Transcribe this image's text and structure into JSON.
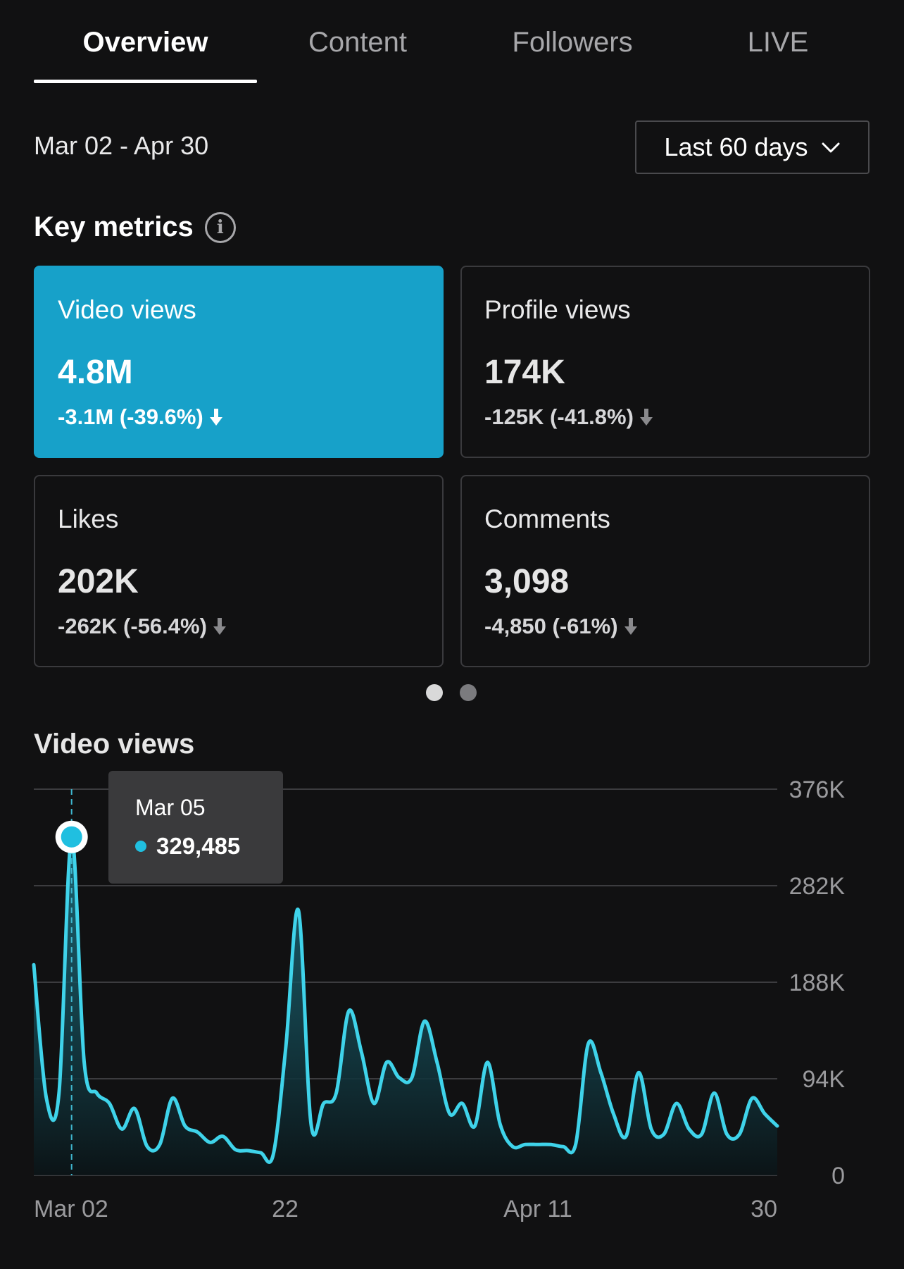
{
  "tabs": [
    {
      "label": "Overview",
      "active": true
    },
    {
      "label": "Content",
      "active": false
    },
    {
      "label": "Followers",
      "active": false
    },
    {
      "label": "LIVE",
      "active": false
    }
  ],
  "date_range": "Mar 02 - Apr 30",
  "range_select": {
    "label": "Last 60 days",
    "icon": "chevron-down-icon"
  },
  "key_metrics": {
    "title": "Key metrics",
    "info_icon": "i",
    "cards": [
      {
        "label": "Video views",
        "value": "4.8M",
        "change": "-3.1M (-39.6%)",
        "active": true
      },
      {
        "label": "Profile views",
        "value": "174K",
        "change": "-125K (-41.8%)",
        "active": false
      },
      {
        "label": "Likes",
        "value": "202K",
        "change": "-262K (-56.4%)",
        "active": false
      },
      {
        "label": "Comments",
        "value": "3,098",
        "change": "-4,850 (-61%)",
        "active": false
      }
    ]
  },
  "pager": {
    "pages": 2,
    "current": 1
  },
  "colors": {
    "accent": "#17a1c9",
    "line": "#3fd3ea",
    "background": "#111112"
  },
  "video_views_chart": {
    "title": "Video views",
    "tooltip": {
      "date": "Mar 05",
      "value": "329,485"
    }
  },
  "chart_data": {
    "type": "area",
    "title": "Video views",
    "x_tick_labels": [
      "Mar 02",
      "22",
      "Apr 11",
      "30"
    ],
    "y_tick_labels": [
      "376K",
      "282K",
      "188K",
      "94K",
      "0"
    ],
    "ylim": [
      0,
      376000
    ],
    "grid": true,
    "x": [
      "Mar 02",
      "Mar 03",
      "Mar 04",
      "Mar 05",
      "Mar 06",
      "Mar 07",
      "Mar 08",
      "Mar 09",
      "Mar 10",
      "Mar 11",
      "Mar 12",
      "Mar 13",
      "Mar 14",
      "Mar 15",
      "Mar 16",
      "Mar 17",
      "Mar 18",
      "Mar 19",
      "Mar 20",
      "Mar 21",
      "Mar 22",
      "Mar 23",
      "Mar 24",
      "Mar 25",
      "Mar 26",
      "Mar 27",
      "Mar 28",
      "Mar 29",
      "Mar 30",
      "Mar 31",
      "Apr 01",
      "Apr 02",
      "Apr 03",
      "Apr 04",
      "Apr 05",
      "Apr 06",
      "Apr 07",
      "Apr 08",
      "Apr 09",
      "Apr 10",
      "Apr 11",
      "Apr 12",
      "Apr 13",
      "Apr 14",
      "Apr 15",
      "Apr 16",
      "Apr 17",
      "Apr 18",
      "Apr 19",
      "Apr 20",
      "Apr 21",
      "Apr 22",
      "Apr 23",
      "Apr 24",
      "Apr 25",
      "Apr 26",
      "Apr 27",
      "Apr 28",
      "Apr 29",
      "Apr 30"
    ],
    "series": [
      {
        "values": [
          205000,
          75000,
          80000,
          329485,
          110000,
          80000,
          70000,
          45000,
          65000,
          28000,
          30000,
          75000,
          48000,
          42000,
          32000,
          38000,
          25000,
          24000,
          22000,
          20000,
          125000,
          258000,
          50000,
          70000,
          80000,
          160000,
          120000,
          70000,
          110000,
          95000,
          95000,
          150000,
          110000,
          60000,
          70000,
          48000,
          110000,
          50000,
          28000,
          30000,
          30000,
          30000,
          28000,
          30000,
          128000,
          100000,
          60000,
          38000,
          100000,
          45000,
          40000,
          70000,
          45000,
          40000,
          80000,
          40000,
          40000,
          75000,
          60000,
          48000
        ]
      }
    ]
  }
}
